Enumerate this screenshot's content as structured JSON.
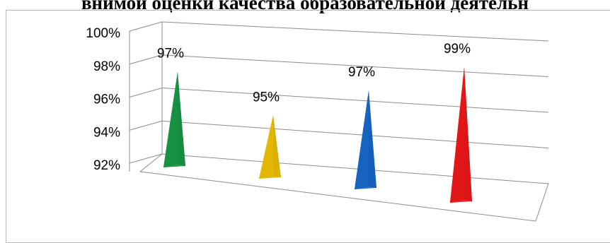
{
  "chart_title": "внимой оценки качества образовательной деятельн",
  "chart_data": {
    "type": "bar",
    "style": "3d-pyramid",
    "title": "внимой оценки качества образовательной деятельн",
    "series": [
      {
        "values": [
          97,
          95,
          97,
          99
        ]
      }
    ],
    "colors": [
      "#1aa34a",
      "#ffcc00",
      "#1a6fd8",
      "#ff1a1a"
    ],
    "data_labels": [
      "97%",
      "95%",
      "97%",
      "99%"
    ],
    "y_ticks": [
      "92%",
      "94%",
      "96%",
      "98%",
      "100%"
    ],
    "ylim": [
      92,
      100
    ],
    "grid": true,
    "legend": "none"
  }
}
